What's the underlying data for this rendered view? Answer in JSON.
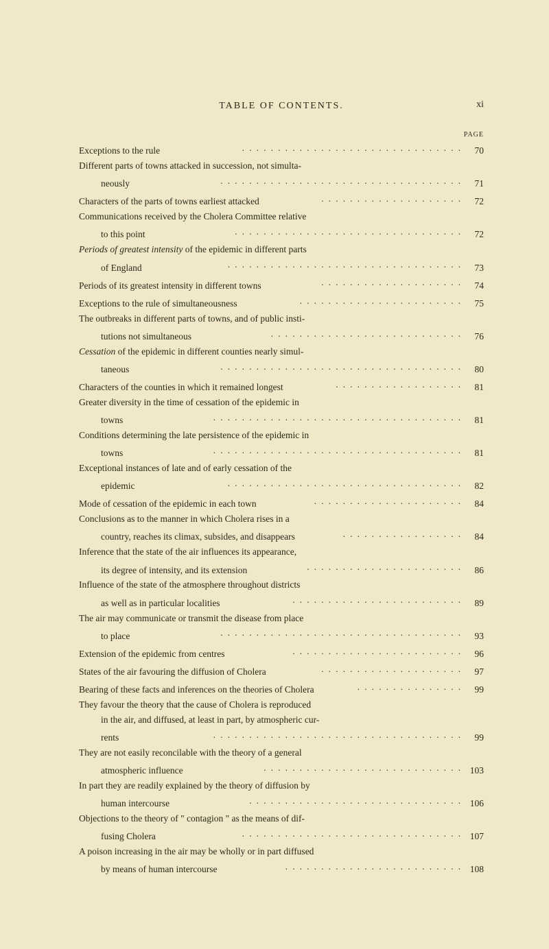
{
  "header": {
    "title": "TABLE OF CONTENTS.",
    "pageNum": "xi",
    "pageLabel": "PAGE"
  },
  "entries": [
    {
      "lines": [
        "Exceptions to the rule"
      ],
      "page": "70"
    },
    {
      "lines": [
        "Different parts of towns attacked in succession, not simulta-",
        "neously"
      ],
      "page": "71"
    },
    {
      "lines": [
        "Characters of the parts of towns earliest attacked"
      ],
      "page": "72"
    },
    {
      "lines": [
        "Communications received by the Cholera Committee relative",
        "to this point"
      ],
      "page": "72"
    },
    {
      "lines": [
        "<i>Periods of greatest intensity</i> of the epidemic in different parts",
        "of England"
      ],
      "page": "73"
    },
    {
      "lines": [
        "Periods of its greatest intensity in different towns"
      ],
      "page": "74"
    },
    {
      "lines": [
        "Exceptions to the rule of simultaneousness"
      ],
      "page": "75"
    },
    {
      "lines": [
        "The outbreaks in different parts of towns, and of public insti-",
        "tutions not simultaneous"
      ],
      "page": "76"
    },
    {
      "lines": [
        "<i>Cessation</i> of the epidemic in different counties nearly simul-",
        "taneous"
      ],
      "page": "80"
    },
    {
      "lines": [
        "Characters of the counties in which it remained longest"
      ],
      "page": "81"
    },
    {
      "lines": [
        "Greater diversity in the time of cessation of the epidemic in",
        "towns"
      ],
      "page": "81"
    },
    {
      "lines": [
        "Conditions determining the late persistence of the epidemic in",
        "towns"
      ],
      "page": "81"
    },
    {
      "lines": [
        "Exceptional instances of late and of early cessation of the",
        "epidemic"
      ],
      "page": "82"
    },
    {
      "lines": [
        "Mode of cessation of the epidemic in each town"
      ],
      "page": "84"
    },
    {
      "lines": [
        "Conclusions as to the manner in which Cholera rises in a",
        "country, reaches its climax, subsides, and disappears"
      ],
      "page": "84"
    },
    {
      "lines": [
        "Inference that the state of the air influences its appearance,",
        "its degree of intensity, and its extension"
      ],
      "page": "86"
    },
    {
      "lines": [
        "Influence of the state of the atmosphere throughout districts",
        "as well as in particular localities"
      ],
      "page": "89"
    },
    {
      "lines": [
        "The air may communicate or transmit the disease from place",
        "to place"
      ],
      "page": "93"
    },
    {
      "lines": [
        "Extension of the epidemic from centres"
      ],
      "page": "96"
    },
    {
      "lines": [
        "States of the air favouring the diffusion of Cholera"
      ],
      "page": "97"
    },
    {
      "lines": [
        "Bearing of these facts and inferences on the theories of Cholera"
      ],
      "page": "99"
    },
    {
      "lines": [
        "They favour the theory that the cause of Cholera is reproduced",
        "in the air, and diffused, at least in part, by atmospheric cur-",
        "rents"
      ],
      "page": "99"
    },
    {
      "lines": [
        "They are not easily reconcilable with the theory of a general",
        "atmospheric influence"
      ],
      "page": "103"
    },
    {
      "lines": [
        "In part they are readily explained by the theory of diffusion by",
        "human intercourse"
      ],
      "page": "106"
    },
    {
      "lines": [
        "Objections to the theory of \" contagion \" as the means of dif-",
        "fusing Cholera"
      ],
      "page": "107"
    },
    {
      "lines": [
        "A poison increasing in the air may be wholly or in part diffused",
        "by means of human intercourse"
      ],
      "page": "108"
    }
  ]
}
